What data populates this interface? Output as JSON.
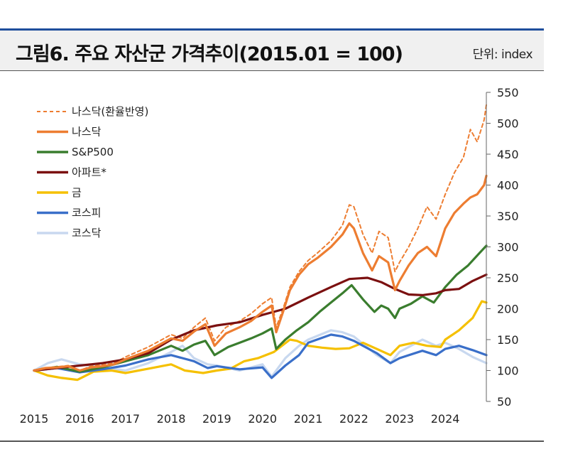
{
  "header": {
    "title": "그림6.  주요 자산군 가격추이(2015.01 = 100)",
    "unit": "단위: index"
  },
  "colors": {
    "nasdaq_fx": "#ed7d31",
    "nasdaq": "#ed7d31",
    "sp500": "#3a7d2e",
    "apart": "#7b1010",
    "gold": "#f5c000",
    "kospi": "#3a6fc9",
    "kosdaq": "#c8d8ef"
  },
  "chart_data": {
    "type": "line",
    "title": "그림6.  주요 자산군 가격추이(2015.01 = 100)",
    "xlabel": "",
    "ylabel": "단위: index",
    "xlim": [
      2015,
      2024.9
    ],
    "ylim": [
      50,
      550
    ],
    "y_ticks": [
      50,
      100,
      150,
      200,
      250,
      300,
      350,
      400,
      450,
      500,
      550
    ],
    "x_ticks": [
      "2015",
      "2016",
      "2017",
      "2018",
      "2019",
      "2020",
      "2021",
      "2022",
      "2023",
      "2024"
    ],
    "x_tick_values": [
      2015,
      2016,
      2017,
      2018,
      2019,
      2020,
      2021,
      2022,
      2023,
      2024
    ],
    "legend_position": "top-left",
    "series": [
      {
        "key": "nasdaq_fx",
        "name": "나스닥(환율반영)",
        "dashed": true,
        "x": [
          2015,
          2015.25,
          2015.5,
          2015.75,
          2016,
          2016.25,
          2016.5,
          2016.75,
          2017,
          2017.5,
          2018,
          2018.25,
          2018.5,
          2018.75,
          2018.95,
          2019.2,
          2019.5,
          2019.75,
          2020,
          2020.2,
          2020.3,
          2020.45,
          2020.6,
          2020.8,
          2021,
          2021.2,
          2021.5,
          2021.75,
          2021.9,
          2022,
          2022.2,
          2022.4,
          2022.55,
          2022.75,
          2022.9,
          2023,
          2023.2,
          2023.4,
          2023.6,
          2023.8,
          2024,
          2024.2,
          2024.4,
          2024.55,
          2024.7,
          2024.85,
          2024.9
        ],
        "y": [
          100,
          104,
          106,
          108,
          100,
          107,
          109,
          112,
          122,
          138,
          158,
          152,
          170,
          185,
          148,
          170,
          180,
          192,
          208,
          218,
          170,
          200,
          235,
          260,
          278,
          290,
          310,
          335,
          368,
          365,
          320,
          290,
          325,
          315,
          260,
          275,
          300,
          330,
          365,
          345,
          385,
          420,
          445,
          490,
          470,
          505,
          530
        ]
      },
      {
        "key": "nasdaq",
        "name": "나스닥",
        "x": [
          2015,
          2015.25,
          2015.5,
          2015.75,
          2016,
          2016.25,
          2016.5,
          2016.75,
          2017,
          2017.5,
          2018,
          2018.25,
          2018.5,
          2018.75,
          2018.95,
          2019.2,
          2019.5,
          2019.75,
          2020,
          2020.2,
          2020.3,
          2020.45,
          2020.6,
          2020.8,
          2021,
          2021.2,
          2021.5,
          2021.75,
          2021.9,
          2022,
          2022.2,
          2022.4,
          2022.55,
          2022.75,
          2022.9,
          2023,
          2023.2,
          2023.4,
          2023.6,
          2023.8,
          2024,
          2024.2,
          2024.4,
          2024.55,
          2024.7,
          2024.85,
          2024.9
        ],
        "y": [
          100,
          104,
          105,
          107,
          100,
          105,
          107,
          110,
          118,
          132,
          152,
          148,
          163,
          175,
          140,
          160,
          170,
          180,
          195,
          205,
          162,
          195,
          230,
          255,
          272,
          282,
          300,
          320,
          338,
          330,
          290,
          262,
          285,
          275,
          230,
          245,
          270,
          290,
          300,
          285,
          330,
          355,
          370,
          380,
          385,
          400,
          415
        ]
      },
      {
        "key": "sp500",
        "name": "S&P500",
        "x": [
          2015,
          2015.5,
          2016,
          2016.5,
          2017,
          2017.5,
          2018,
          2018.25,
          2018.5,
          2018.75,
          2018.95,
          2019.25,
          2019.5,
          2019.75,
          2020,
          2020.2,
          2020.3,
          2020.5,
          2020.75,
          2021,
          2021.25,
          2021.5,
          2021.75,
          2021.95,
          2022.2,
          2022.45,
          2022.6,
          2022.75,
          2022.9,
          2023,
          2023.25,
          2023.5,
          2023.75,
          2024,
          2024.25,
          2024.5,
          2024.75,
          2024.9
        ],
        "y": [
          100,
          106,
          98,
          105,
          115,
          125,
          140,
          132,
          142,
          148,
          125,
          138,
          145,
          152,
          160,
          168,
          135,
          150,
          165,
          178,
          195,
          210,
          225,
          238,
          215,
          195,
          205,
          200,
          185,
          200,
          208,
          220,
          210,
          235,
          255,
          270,
          290,
          302
        ]
      },
      {
        "key": "apart",
        "name": "아파트*",
        "x": [
          2015,
          2015.5,
          2016,
          2016.5,
          2017,
          2017.5,
          2018,
          2018.5,
          2019,
          2019.5,
          2020,
          2020.5,
          2021,
          2021.5,
          2021.9,
          2022.3,
          2022.6,
          2022.9,
          2023.2,
          2023.5,
          2023.8,
          2024,
          2024.3,
          2024.6,
          2024.9
        ],
        "y": [
          100,
          104,
          108,
          112,
          118,
          128,
          150,
          165,
          173,
          178,
          190,
          200,
          218,
          235,
          248,
          250,
          243,
          232,
          223,
          222,
          225,
          230,
          232,
          245,
          255
        ]
      },
      {
        "key": "gold",
        "name": "금",
        "x": [
          2015,
          2015.3,
          2015.6,
          2015.95,
          2016.3,
          2016.7,
          2017,
          2017.5,
          2018,
          2018.3,
          2018.7,
          2019,
          2019.3,
          2019.6,
          2019.9,
          2020.25,
          2020.6,
          2020.75,
          2021,
          2021.3,
          2021.6,
          2021.9,
          2022.2,
          2022.5,
          2022.8,
          2023,
          2023.3,
          2023.6,
          2023.9,
          2024,
          2024.3,
          2024.6,
          2024.8,
          2024.9
        ],
        "y": [
          100,
          92,
          88,
          85,
          98,
          100,
          96,
          103,
          110,
          100,
          96,
          100,
          103,
          115,
          120,
          130,
          150,
          148,
          140,
          137,
          135,
          136,
          145,
          135,
          125,
          140,
          145,
          140,
          138,
          150,
          165,
          185,
          212,
          210
        ]
      },
      {
        "key": "kospi",
        "name": "코스피",
        "x": [
          2015,
          2015.5,
          2016,
          2016.5,
          2017,
          2017.5,
          2018,
          2018.5,
          2018.8,
          2019,
          2019.5,
          2020,
          2020.2,
          2020.5,
          2020.8,
          2021,
          2021.5,
          2021.75,
          2022,
          2022.5,
          2022.8,
          2023,
          2023.5,
          2023.8,
          2024,
          2024.3,
          2024.6,
          2024.9
        ],
        "y": [
          100,
          104,
          97,
          102,
          108,
          118,
          125,
          115,
          104,
          107,
          102,
          105,
          88,
          108,
          125,
          145,
          158,
          155,
          148,
          128,
          112,
          120,
          132,
          125,
          135,
          140,
          133,
          125
        ]
      },
      {
        "key": "kosdaq",
        "name": "코스닥",
        "x": [
          2015,
          2015.3,
          2015.6,
          2016,
          2016.5,
          2017,
          2017.5,
          2018,
          2018.25,
          2018.5,
          2018.8,
          2019,
          2019.5,
          2020,
          2020.2,
          2020.5,
          2020.8,
          2021,
          2021.5,
          2021.75,
          2022,
          2022.5,
          2022.8,
          2023,
          2023.5,
          2023.8,
          2024,
          2024.3,
          2024.6,
          2024.9
        ],
        "y": [
          100,
          112,
          118,
          110,
          105,
          100,
          112,
          130,
          140,
          120,
          110,
          108,
          100,
          110,
          90,
          120,
          140,
          150,
          165,
          162,
          155,
          125,
          112,
          130,
          150,
          140,
          145,
          135,
          122,
          112
        ]
      }
    ]
  }
}
